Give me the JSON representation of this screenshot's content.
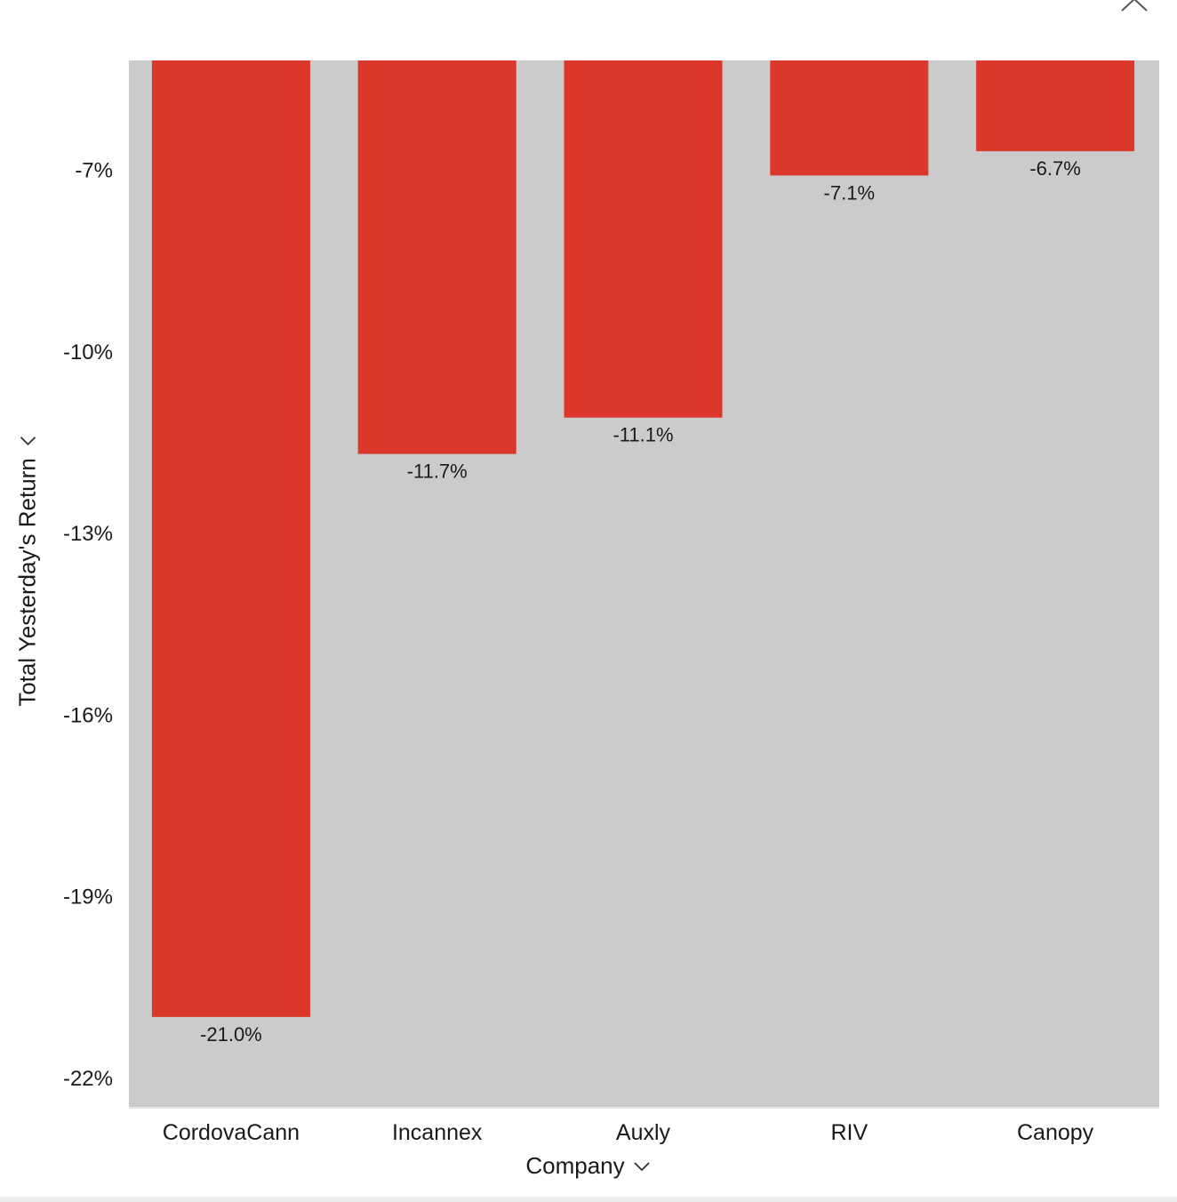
{
  "close_icon": "close-icon",
  "colors": {
    "bar": "#dc372b",
    "plot_bg": "#cbcbcb",
    "page_bg": "#ffffff"
  },
  "x_axis": {
    "title": "Company",
    "icon": "chevron-down-icon"
  },
  "y_axis": {
    "title": "Total Yesterday's Return",
    "icon": "chevron-right-icon"
  },
  "chart_data": {
    "type": "bar",
    "categories": [
      "CordovaCann",
      "Incannex",
      "Auxly",
      "RIV",
      "Canopy"
    ],
    "values": [
      -21.0,
      -11.7,
      -11.1,
      -7.1,
      -6.7
    ],
    "data_labels": [
      "-21.0%",
      "-11.7%",
      "-11.1%",
      "-7.1%",
      "-6.7%"
    ],
    "xlabel": "Company",
    "ylabel": "Total Yesterday's Return",
    "yticks": [
      -7,
      -10,
      -13,
      -16,
      -19,
      -22
    ],
    "ytick_labels": [
      "-7%",
      "-10%",
      "-13%",
      "-16%",
      "-19%",
      "-22%"
    ],
    "ylim": [
      -22.5,
      -5.2
    ],
    "grid": false,
    "legend": "none"
  }
}
